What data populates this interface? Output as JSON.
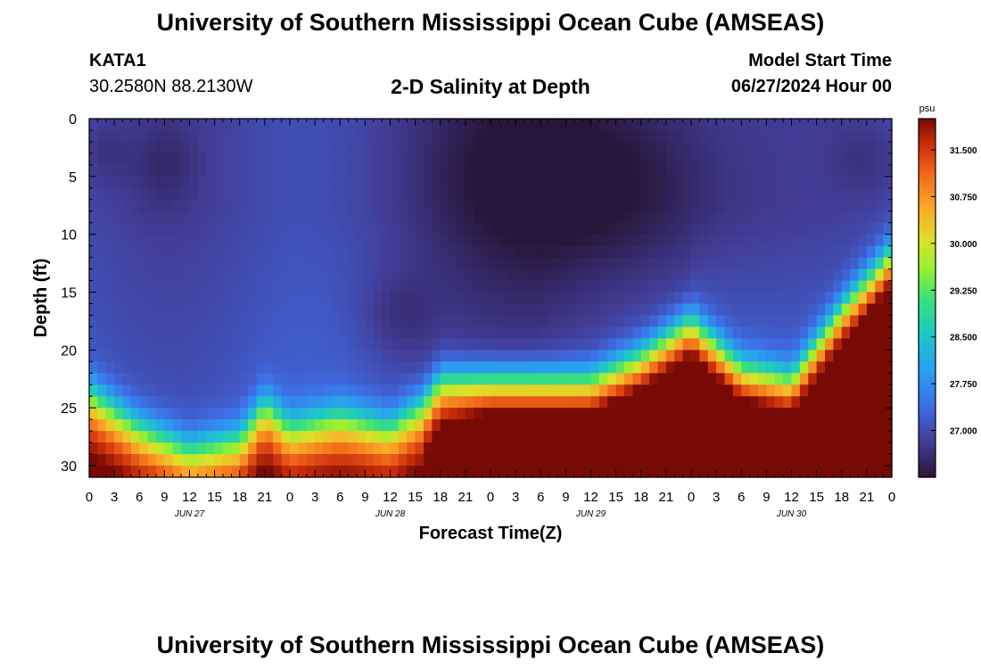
{
  "header": {
    "title": "University of Southern Mississippi Ocean Cube (AMSEAS)",
    "station": "KATA1",
    "coordinates": "30.2580N  88.2130W",
    "start_label": "Model Start Time",
    "start_value": "06/27/2024 Hour 00"
  },
  "footer": {
    "title": "University of Southern Mississippi Ocean Cube (AMSEAS)"
  },
  "chart_data": {
    "type": "heatmap",
    "title": "2-D Salinity at Depth",
    "xlabel": "Forecast Time(Z)",
    "ylabel": "Depth (ft)",
    "x_tick_labels": [
      "0",
      "3",
      "6",
      "9",
      "12",
      "15",
      "18",
      "21",
      "0",
      "3",
      "6",
      "9",
      "12",
      "15",
      "18",
      "21",
      "0",
      "3",
      "6",
      "9",
      "12",
      "15",
      "18",
      "21",
      "0",
      "3",
      "6",
      "9",
      "12",
      "15",
      "18",
      "21",
      "0"
    ],
    "x_range_hours": [
      0,
      96
    ],
    "date_labels": [
      {
        "label": "JUN 27",
        "hour": 12
      },
      {
        "label": "JUN 28",
        "hour": 36
      },
      {
        "label": "JUN 29",
        "hour": 60
      },
      {
        "label": "JUN 30",
        "hour": 84
      }
    ],
    "y_ticks": [
      "0",
      "5",
      "10",
      "15",
      "20",
      "25",
      "30"
    ],
    "y_range_ft": [
      0,
      31
    ],
    "colorbar": {
      "unit": "psu",
      "range": [
        26.25,
        32.0
      ],
      "tick_labels": [
        "31.500",
        "30.750",
        "30.000",
        "29.250",
        "28.500",
        "27.750",
        "27.000"
      ],
      "tick_values": [
        31.5,
        30.75,
        30.0,
        29.25,
        28.5,
        27.75,
        27.0
      ]
    },
    "interface_depth_ft": [
      {
        "hour": 0,
        "depth": 23
      },
      {
        "hour": 6,
        "depth": 26
      },
      {
        "hour": 12,
        "depth": 28
      },
      {
        "hour": 18,
        "depth": 27
      },
      {
        "hour": 21,
        "depth": 24
      },
      {
        "hour": 24,
        "depth": 26
      },
      {
        "hour": 30,
        "depth": 25
      },
      {
        "hour": 36,
        "depth": 26
      },
      {
        "hour": 40,
        "depth": 24
      },
      {
        "hour": 42,
        "depth": 22
      },
      {
        "hour": 48,
        "depth": 22
      },
      {
        "hour": 54,
        "depth": 22
      },
      {
        "hour": 60,
        "depth": 22
      },
      {
        "hour": 66,
        "depth": 20
      },
      {
        "hour": 72,
        "depth": 17
      },
      {
        "hour": 78,
        "depth": 21
      },
      {
        "hour": 84,
        "depth": 22
      },
      {
        "hour": 90,
        "depth": 16
      },
      {
        "hour": 96,
        "depth": 11
      }
    ]
  }
}
